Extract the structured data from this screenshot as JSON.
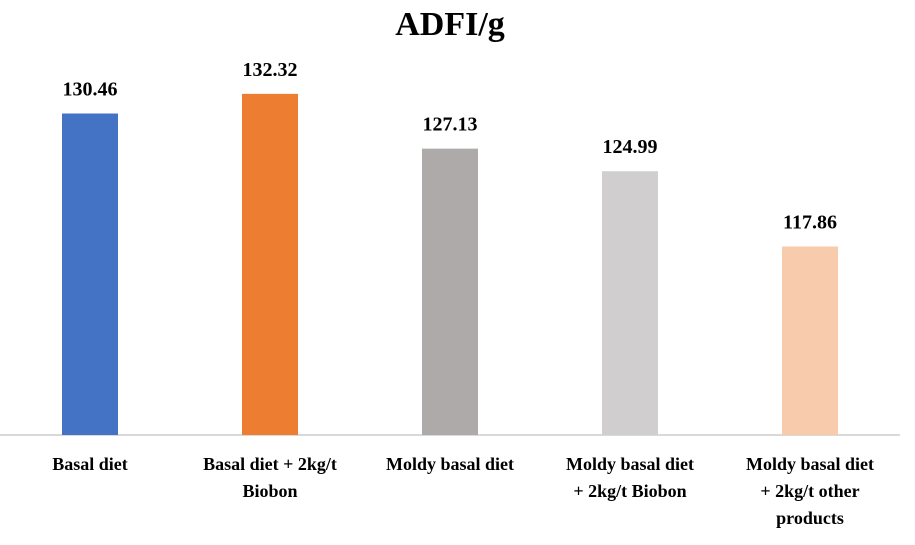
{
  "chart_data": {
    "type": "bar",
    "title": "ADFI/g",
    "xlabel": "",
    "ylabel": "",
    "categories": [
      "Basal diet",
      "Basal diet + 2kg/t Biobon",
      "Moldy basal diet",
      "Moldy basal diet + 2kg/t Biobon",
      "Moldy basal diet + 2kg/t other products"
    ],
    "category_lines": [
      [
        "Basal diet"
      ],
      [
        "Basal diet + 2kg/t",
        "Biobon"
      ],
      [
        "Moldy basal diet"
      ],
      [
        "Moldy basal diet",
        "+ 2kg/t Biobon"
      ],
      [
        "Moldy basal diet",
        "+ 2kg/t other",
        "products"
      ]
    ],
    "values": [
      130.46,
      132.32,
      127.13,
      124.99,
      117.86
    ],
    "value_labels": [
      "130.46",
      "132.32",
      "127.13",
      "124.99",
      "117.86"
    ],
    "colors": [
      "#4472c4",
      "#ed7d31",
      "#aeaaaa",
      "#d0cece",
      "#f8cbad"
    ],
    "ylim": [
      100,
      135
    ],
    "grid": false,
    "legend": "none",
    "axis_color": "#d9d9d9"
  }
}
